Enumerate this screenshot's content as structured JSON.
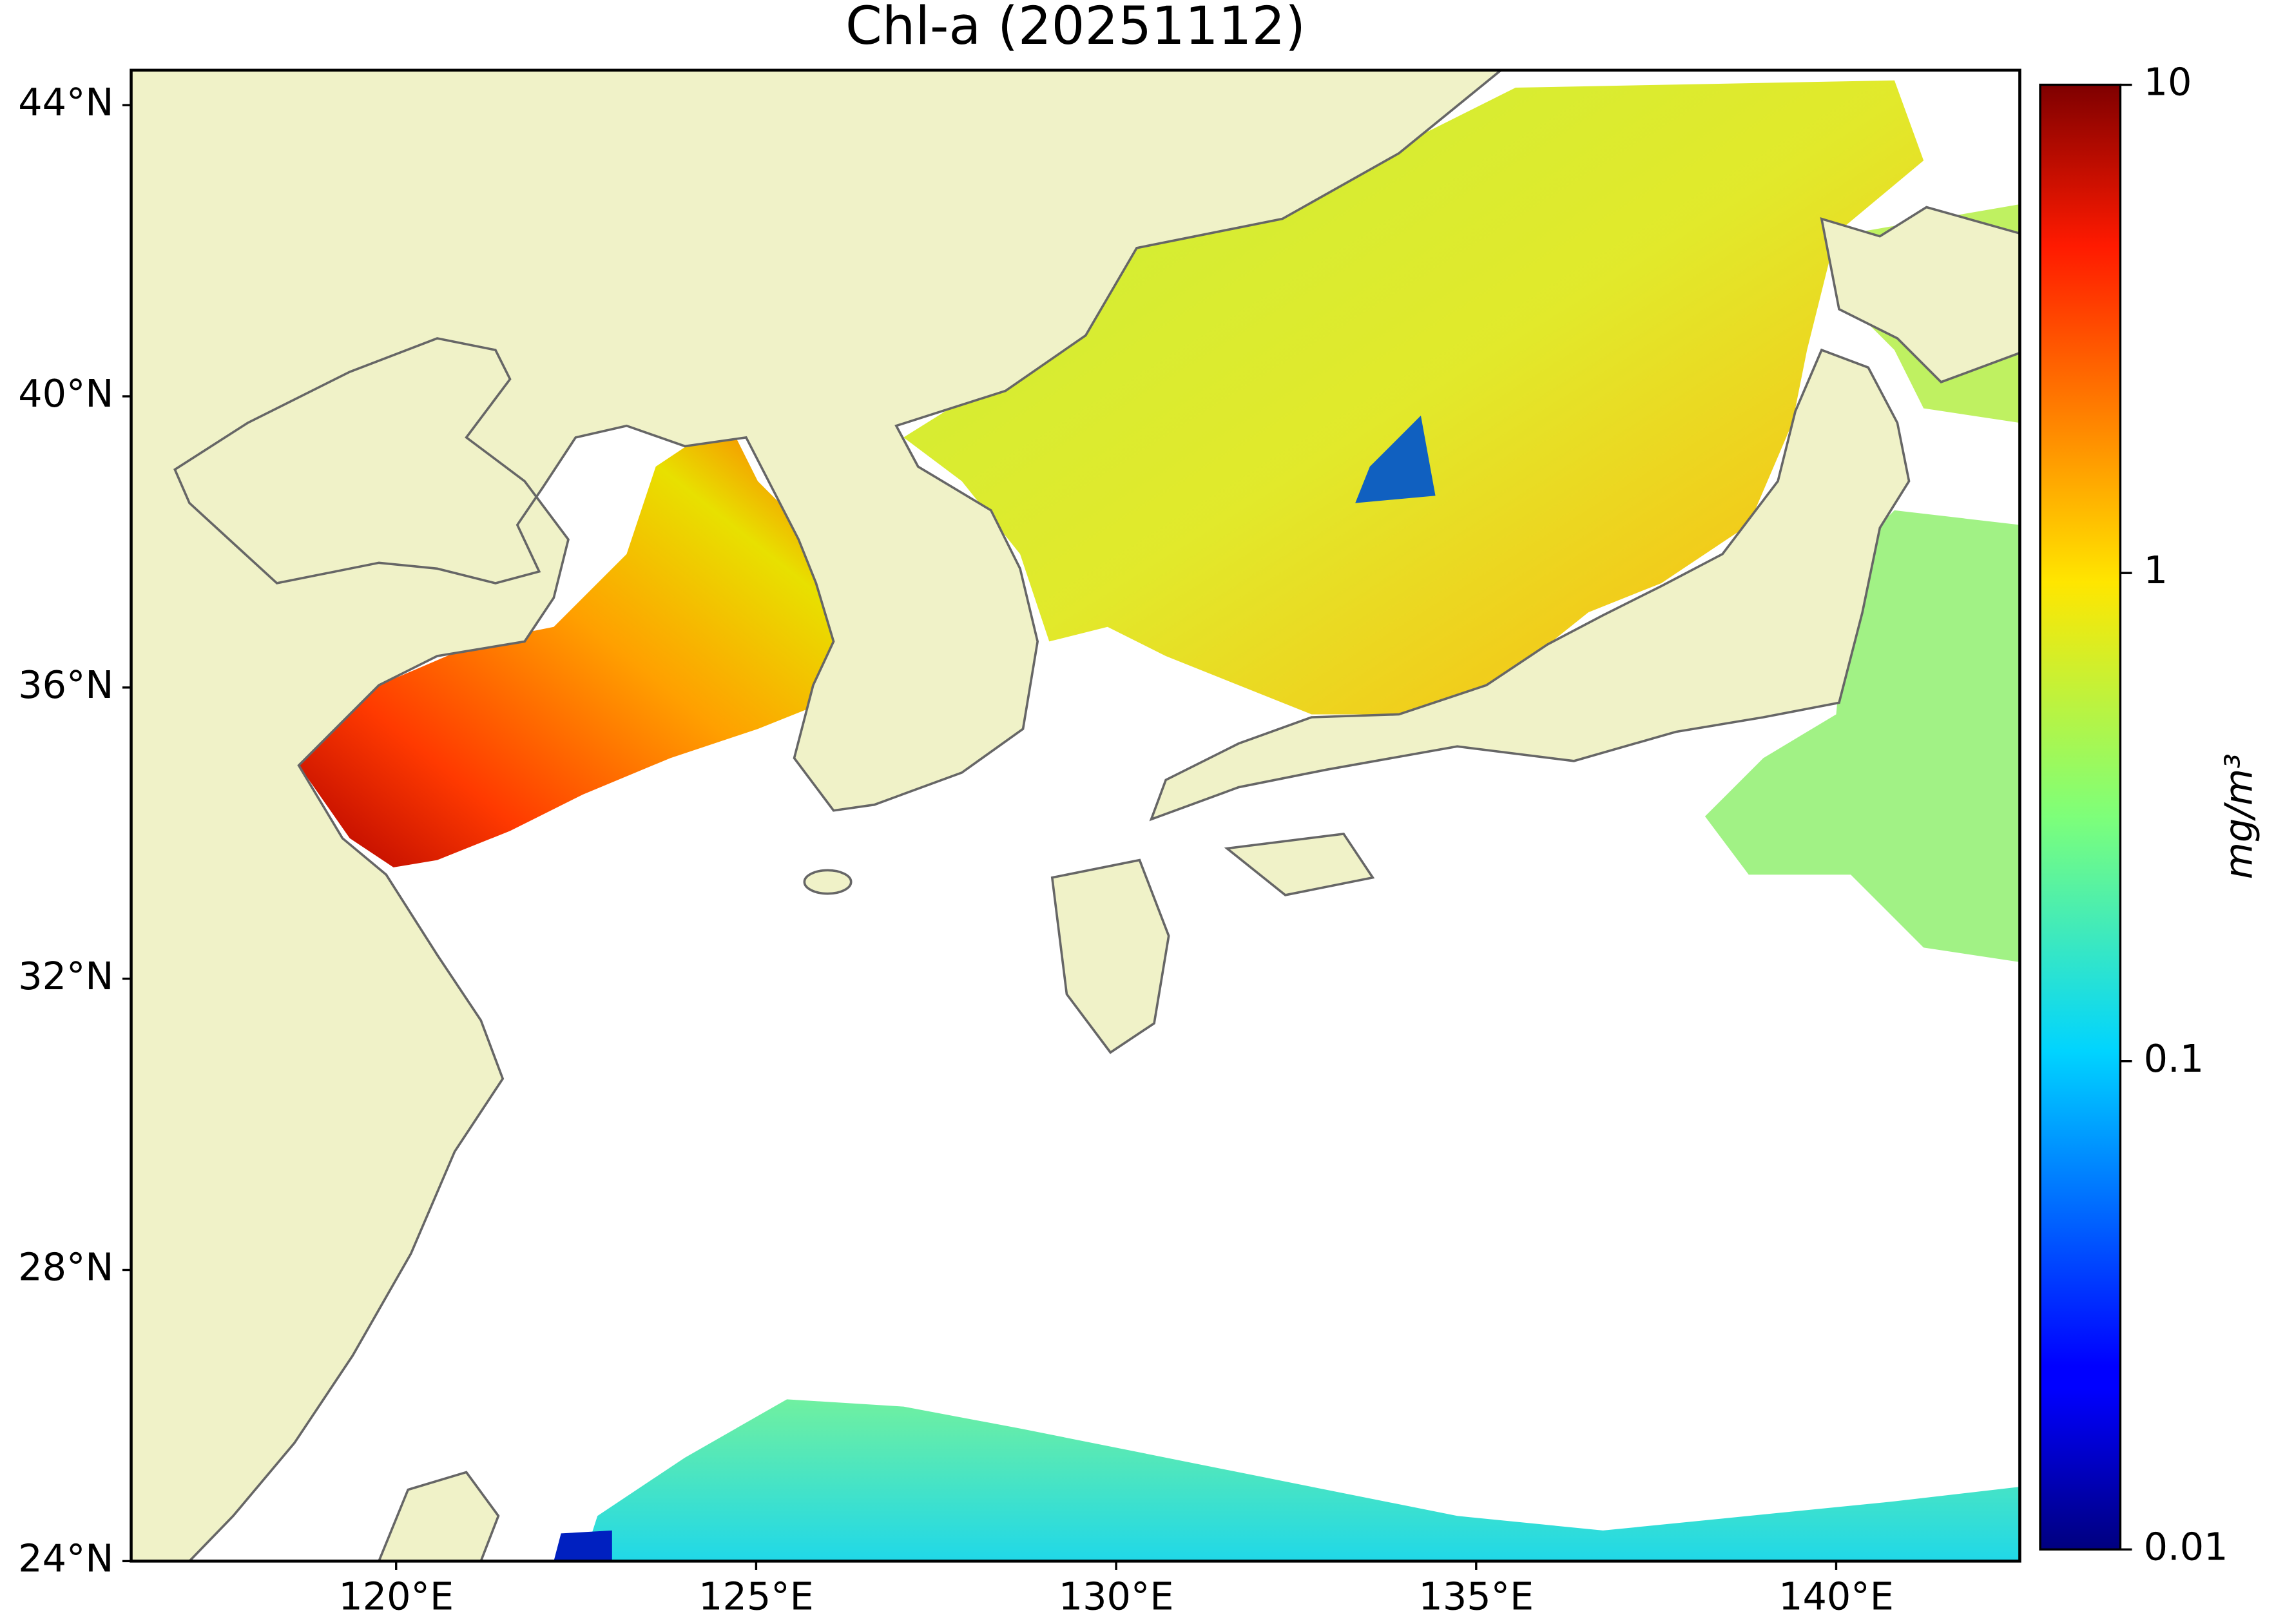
{
  "chart_data": {
    "type": "map",
    "title": "Chl-a (20251112)",
    "xlim": [
      116.32,
      142.55
    ],
    "ylim": [
      24,
      44.48
    ],
    "xticks": [
      {
        "value": 120,
        "label": "120°E"
      },
      {
        "value": 125,
        "label": "125°E"
      },
      {
        "value": 130,
        "label": "130°E"
      },
      {
        "value": 135,
        "label": "135°E"
      },
      {
        "value": 140,
        "label": "140°E"
      }
    ],
    "yticks": [
      {
        "value": 24,
        "label": "24°N"
      },
      {
        "value": 28,
        "label": "28°N"
      },
      {
        "value": 32,
        "label": "32°N"
      },
      {
        "value": 36,
        "label": "36°N"
      },
      {
        "value": 40,
        "label": "40°N"
      },
      {
        "value": 44,
        "label": "44°N"
      }
    ],
    "colorbar": {
      "label": "mg/m³",
      "lim": [
        0.01,
        10
      ],
      "ticks": [
        0.01,
        0.1,
        1,
        10
      ],
      "log_scale": true,
      "colormap": "jet"
    }
  }
}
